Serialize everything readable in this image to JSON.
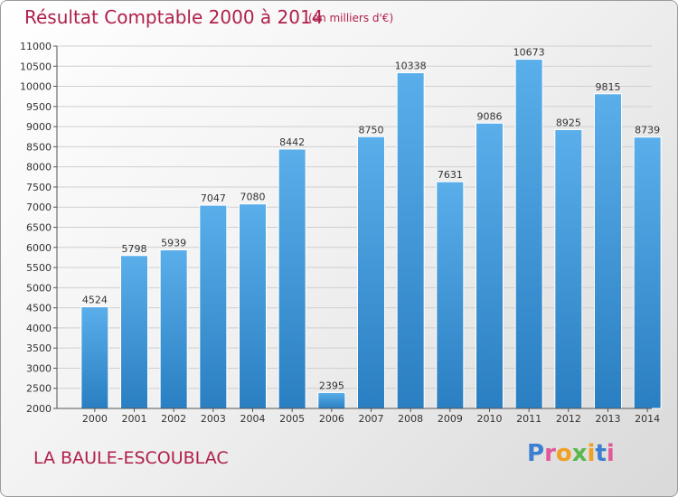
{
  "header": {
    "title": "Résultat Comptable 2000 à 2014",
    "subtitle": "(en milliers d'€)"
  },
  "footer": {
    "commune": "LA BAULE-ESCOUBLAC",
    "logo_text": "Proxiti"
  },
  "colors": {
    "title": "#b0204a",
    "bar_light": "#5aaeea",
    "bar_dark": "#2a7fc2",
    "grid": "#d0d0d0"
  },
  "chart_data": {
    "type": "bar",
    "title": "Résultat Comptable 2000 à 2014",
    "subtitle": "(en milliers d'€)",
    "categories": [
      "2000",
      "2001",
      "2002",
      "2003",
      "2004",
      "2005",
      "2006",
      "2007",
      "2008",
      "2009",
      "2010",
      "2011",
      "2012",
      "2013",
      "2014"
    ],
    "values": [
      4524,
      5798,
      5939,
      7047,
      7080,
      8442,
      2395,
      8750,
      10338,
      7631,
      9086,
      10673,
      8925,
      9815,
      8739
    ],
    "ylim": [
      2000,
      11000
    ],
    "yticks": [
      2000,
      2500,
      3000,
      3500,
      4000,
      4500,
      5000,
      5500,
      6000,
      6500,
      7000,
      7500,
      8000,
      8500,
      9000,
      9500,
      10000,
      10500,
      11000
    ],
    "grid": true,
    "xlabel": "",
    "ylabel": ""
  }
}
